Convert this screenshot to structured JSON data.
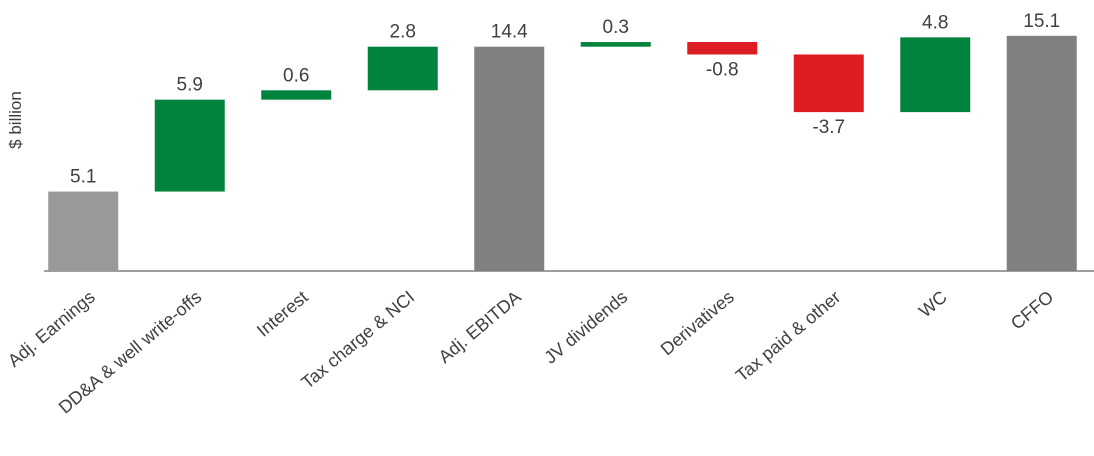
{
  "chart_data": {
    "type": "waterfall",
    "title": "",
    "xlabel": "",
    "ylabel": "$ billion",
    "ylim": [
      0,
      15.6
    ],
    "grid": false,
    "legend": "none",
    "categories": [
      "Adj. Earnings",
      "DD&A & well write-offs",
      "Interest",
      "Tax charge & NCI",
      "Adj. EBITDA",
      "JV dividends",
      "Derivatives",
      "Tax paid & other",
      "WC",
      "CFFO"
    ],
    "values": [
      5.1,
      5.9,
      0.6,
      2.8,
      14.4,
      0.3,
      -0.8,
      -3.7,
      4.8,
      15.1
    ],
    "labels": [
      "5.1",
      "5.9",
      "0.6",
      "2.8",
      "14.4",
      "0.3",
      "-0.8",
      "-3.7",
      "4.8",
      "15.1"
    ],
    "bar_kinds": [
      "total",
      "delta",
      "delta",
      "delta",
      "total",
      "delta",
      "delta",
      "delta",
      "delta",
      "total"
    ],
    "colors": {
      "first_total": "#999999",
      "total": "#808080",
      "increase": "#00843D",
      "decrease": "#DD1D21",
      "axis": "#7f7f7f",
      "text": "#404040"
    }
  }
}
